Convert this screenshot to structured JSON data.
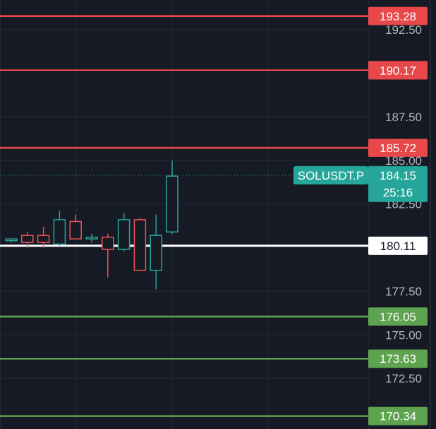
{
  "chart_data": {
    "type": "candlestick",
    "symbol": "SOLUSDT.P",
    "last_price": "184.15",
    "countdown": "25:16",
    "y_ticks": [
      "192.50",
      "187.50",
      "185.00",
      "182.50",
      "177.50",
      "175.00",
      "172.50"
    ],
    "ylim": [
      169.6,
      194.2
    ],
    "grid": true,
    "levels": [
      {
        "value": 193.28,
        "label": "193.28",
        "kind": "resistance"
      },
      {
        "value": 190.17,
        "label": "190.17",
        "kind": "resistance"
      },
      {
        "value": 185.72,
        "label": "185.72",
        "kind": "resistance"
      },
      {
        "value": 180.11,
        "label": "180.11",
        "kind": "pivot"
      },
      {
        "value": 176.05,
        "label": "176.05",
        "kind": "support"
      },
      {
        "value": 173.63,
        "label": "173.63",
        "kind": "support"
      },
      {
        "value": 170.34,
        "label": "170.34",
        "kind": "support"
      }
    ],
    "candles": [
      {
        "open": 180.4,
        "high": 180.5,
        "low": 180.3,
        "close": 180.5
      },
      {
        "open": 180.7,
        "high": 180.9,
        "low": 180.0,
        "close": 180.3
      },
      {
        "open": 180.7,
        "high": 181.2,
        "low": 180.0,
        "close": 180.3
      },
      {
        "open": 180.2,
        "high": 182.1,
        "low": 180.1,
        "close": 181.6
      },
      {
        "open": 181.5,
        "high": 181.9,
        "low": 180.5,
        "close": 180.5
      },
      {
        "open": 180.5,
        "high": 180.8,
        "low": 180.3,
        "close": 180.6
      },
      {
        "open": 180.6,
        "high": 180.8,
        "low": 178.3,
        "close": 179.9
      },
      {
        "open": 179.9,
        "high": 182.0,
        "low": 179.8,
        "close": 181.6
      },
      {
        "open": 181.6,
        "high": 181.7,
        "low": 178.7,
        "close": 178.7
      },
      {
        "open": 178.7,
        "high": 181.9,
        "low": 177.6,
        "close": 180.7
      },
      {
        "open": 180.9,
        "high": 185.0,
        "low": 180.8,
        "close": 184.1
      }
    ],
    "colors": {
      "background": "#161a25",
      "grid": "#262a36",
      "resistance": "#e8484a",
      "pivot": "#ffffff",
      "support": "#5ea34f",
      "bull": "#26a69a",
      "bear": "#ef5350",
      "tick_text": "#b2b5be",
      "price_tag": "#26a69a"
    }
  }
}
